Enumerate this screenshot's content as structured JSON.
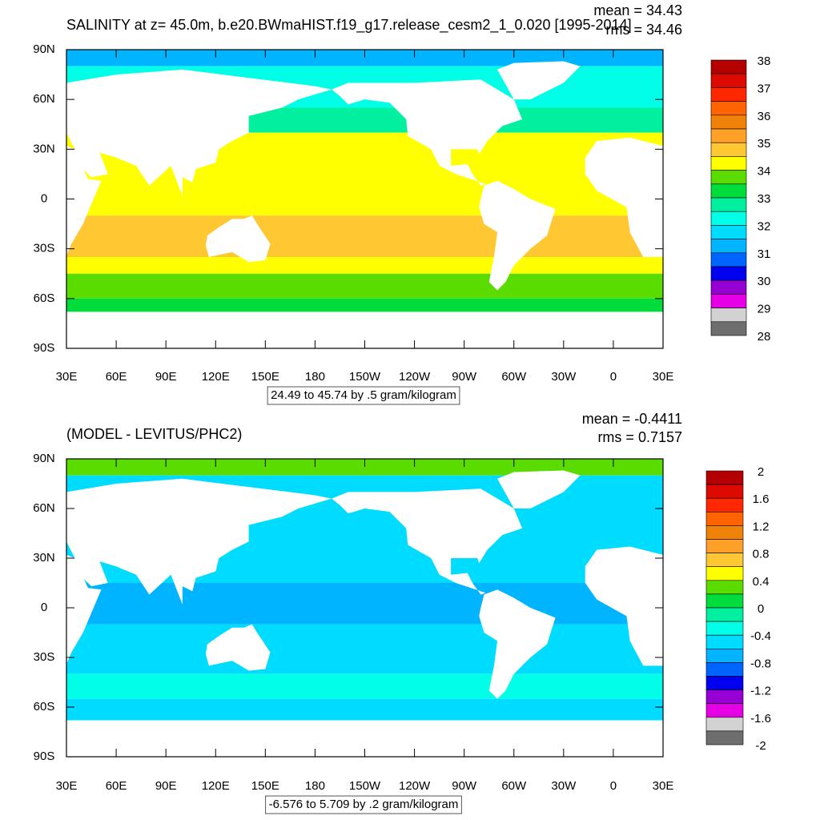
{
  "panels": [
    {
      "title": "SALINITY at z=  45.0m, b.e20.BWmaHIST.f19_g17.release_cesm2_1_0.020 [1995-2014]",
      "mean": "mean = 34.43",
      "rms": "rms = 34.46",
      "lat_labels": [
        "90N",
        "60N",
        "30N",
        "0",
        "30S",
        "60S",
        "90S"
      ],
      "lon_labels": [
        "30E",
        "60E",
        "90E",
        "120E",
        "150E",
        "180",
        "150W",
        "120W",
        "90W",
        "60W",
        "30W",
        "0",
        "30E"
      ],
      "range_note": "24.49 to 45.74 by .5 gram/kilogram",
      "colorbar_labels": [
        "38",
        "37",
        "36",
        "35",
        "34",
        "33",
        "32",
        "31",
        "30",
        "29",
        "28"
      ],
      "colorbar_colors": [
        "#b40000",
        "#dc0a00",
        "#ff2800",
        "#ff6400",
        "#f0820a",
        "#ffa028",
        "#ffc832",
        "#ffff00",
        "#5adc00",
        "#00dc3c",
        "#00f0a0",
        "#00ffe6",
        "#00dcff",
        "#00b4ff",
        "#0064ff",
        "#0000f0",
        "#9600d2",
        "#e600e6",
        "#d2d2d2",
        "#6e6e6e"
      ]
    },
    {
      "title": "(MODEL - LEVITUS/PHC2)",
      "mean": "mean = -0.4411",
      "rms": "rms = 0.7157",
      "lat_labels": [
        "90N",
        "60N",
        "30N",
        "0",
        "30S",
        "60S",
        "90S"
      ],
      "lon_labels": [
        "30E",
        "60E",
        "90E",
        "120E",
        "150E",
        "180",
        "150W",
        "120W",
        "90W",
        "60W",
        "30W",
        "0",
        "30E"
      ],
      "range_note": "-6.576 to 5.709 by .2 gram/kilogram",
      "colorbar_labels": [
        "2",
        "1.6",
        "1.2",
        "0.8",
        "0.4",
        "0",
        "-0.4",
        "-0.8",
        "-1.2",
        "-1.6",
        "-2"
      ],
      "colorbar_colors": [
        "#b40000",
        "#dc0a00",
        "#ff2800",
        "#ff6400",
        "#f0820a",
        "#ffa028",
        "#ffc832",
        "#ffff00",
        "#5adc00",
        "#00dc3c",
        "#00f0a0",
        "#00ffe6",
        "#00dcff",
        "#00b4ff",
        "#0064ff",
        "#0000f0",
        "#9600d2",
        "#e600e6",
        "#d2d2d2",
        "#6e6e6e"
      ]
    }
  ]
}
